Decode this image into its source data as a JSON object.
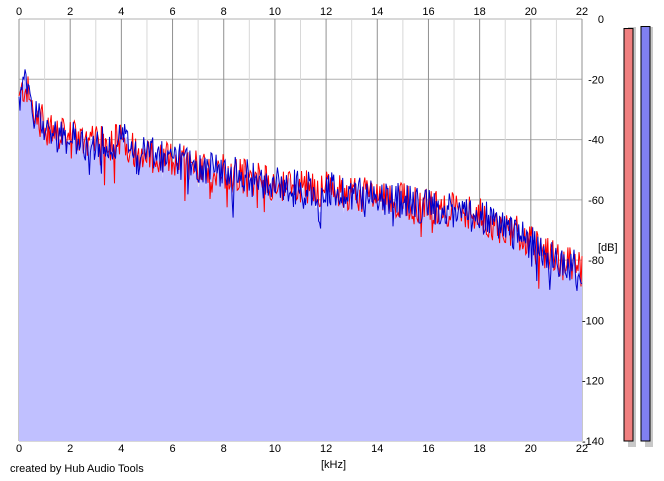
{
  "credit_text": "created by Hub Audio Tools",
  "chart_data": {
    "type": "area",
    "xlabel": "[kHz]",
    "ylabel": "[dB]",
    "xlim": [
      0,
      22
    ],
    "ylim": [
      -140,
      0
    ],
    "x_ticks": [
      "0",
      "2",
      "4",
      "6",
      "8",
      "10",
      "12",
      "14",
      "16",
      "18",
      "20",
      "22"
    ],
    "y_ticks": [
      "0",
      "-20",
      "-40",
      "-60",
      "-80",
      "-100",
      "-120",
      "-140"
    ],
    "grid": true,
    "colors": {
      "channel_left": "#ff0000",
      "channel_right": "#0000cc",
      "fill": "#c0c0ff",
      "meter_left": "#f08080",
      "meter_right": "#8080f0"
    },
    "series": [
      {
        "x": [
          0,
          0.25,
          0.5,
          1,
          1.5,
          2,
          2.5,
          3,
          3.5,
          4,
          4.5,
          5,
          5.5,
          6,
          6.5,
          7,
          7.5,
          8,
          8.5,
          9,
          9.5,
          10,
          10.5,
          11,
          11.5,
          12,
          12.5,
          13,
          13.5,
          14,
          14.5,
          15,
          15.5,
          16,
          16.5,
          17,
          17.5,
          18,
          18.5,
          19,
          19.5,
          20,
          20.5,
          21,
          21.5,
          22
        ],
        "values": [
          -28,
          -22,
          -30,
          -36,
          -39,
          -40,
          -41,
          -42,
          -42,
          -40,
          -44,
          -45,
          -47,
          -47,
          -48,
          -49,
          -50,
          -51,
          -52,
          -53,
          -54,
          -55,
          -56,
          -56,
          -57,
          -57,
          -58,
          -58,
          -59,
          -59,
          -60,
          -61,
          -62,
          -63,
          -63,
          -64,
          -65,
          -66,
          -68,
          -70,
          -72,
          -75,
          -78,
          -80,
          -82,
          -84
        ]
      }
    ],
    "meters": [
      -1.5,
      -1.5
    ]
  }
}
